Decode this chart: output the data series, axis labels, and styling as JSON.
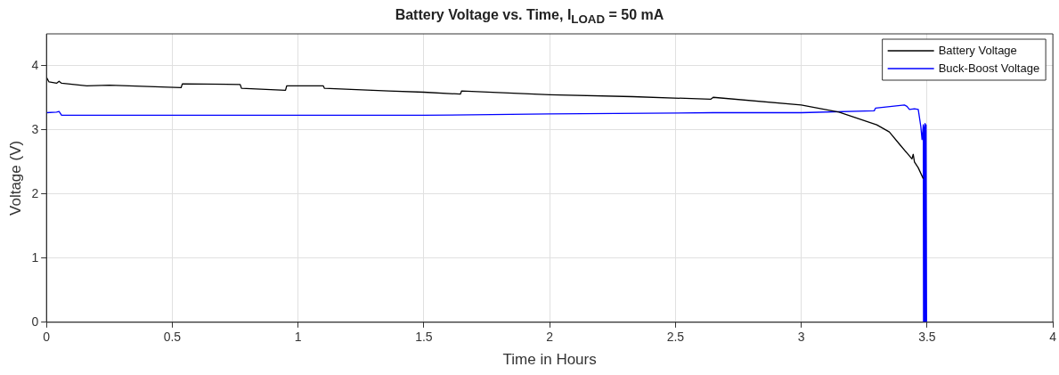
{
  "chart_data": {
    "type": "line",
    "title": "Battery Voltage vs. Time, I$_{LOAD}$ = 50 mA",
    "xlabel": "Time in Hours",
    "ylabel": "Voltage (V)",
    "xlim": [
      0,
      4
    ],
    "xticks": [
      0,
      0.5,
      1,
      1.5,
      2,
      2.5,
      3,
      3.5,
      4
    ],
    "ylim": [
      0,
      4.5
    ],
    "yticks": [
      0,
      1,
      2,
      3,
      4
    ],
    "grid": true,
    "legend": "top right",
    "marker": "none",
    "line_style": "solid",
    "series": [
      {
        "name": "Battery Voltage",
        "color": "#000000",
        "x": [
          0,
          0.01,
          0.04,
          0.05,
          0.06,
          0.16,
          0.25,
          0.535,
          0.54,
          0.77,
          0.775,
          0.95,
          0.955,
          1.1,
          1.105,
          1.36,
          1.5,
          1.645,
          1.65,
          2.0,
          2.33,
          2.64,
          2.65,
          3.0,
          3.15,
          3.3,
          3.35,
          3.39,
          3.44,
          3.445,
          3.45,
          3.465,
          3.485
        ],
        "values": [
          3.82,
          3.75,
          3.73,
          3.76,
          3.73,
          3.69,
          3.7,
          3.66,
          3.72,
          3.71,
          3.65,
          3.62,
          3.69,
          3.69,
          3.65,
          3.61,
          3.59,
          3.56,
          3.61,
          3.55,
          3.52,
          3.48,
          3.51,
          3.39,
          3.28,
          3.08,
          2.97,
          2.78,
          2.55,
          2.62,
          2.5,
          2.41,
          2.24
        ]
      },
      {
        "name": "Buck-Boost Voltage",
        "color": "#0000ff",
        "x": [
          0,
          0.04,
          0.05,
          0.06,
          0.5,
          1.0,
          1.5,
          2.0,
          2.65,
          3.0,
          3.29,
          3.295,
          3.41,
          3.42,
          3.43,
          3.45,
          3.465,
          3.475,
          3.48,
          3.485,
          3.486,
          3.488,
          3.49,
          3.492,
          3.494,
          3.496,
          3.498,
          3.5
        ],
        "values": [
          3.27,
          3.28,
          3.29,
          3.23,
          3.23,
          3.23,
          3.23,
          3.25,
          3.27,
          3.27,
          3.3,
          3.34,
          3.39,
          3.37,
          3.32,
          3.33,
          3.32,
          3.06,
          2.85,
          3.08,
          0,
          3.05,
          0,
          3.1,
          0,
          3.08,
          0,
          0
        ]
      }
    ]
  }
}
